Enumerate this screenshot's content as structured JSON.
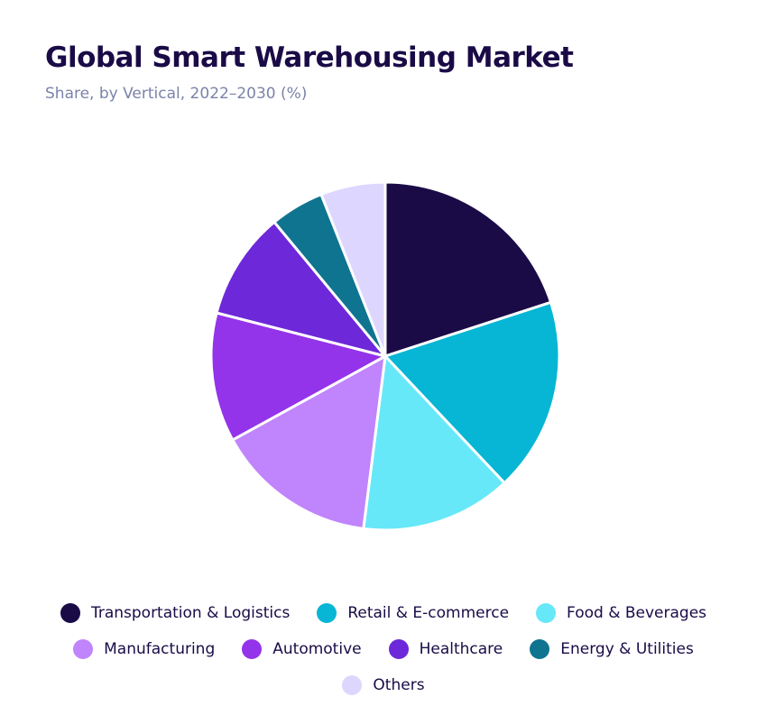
{
  "chart_data": {
    "type": "pie",
    "title": "Global Smart Warehousing Market",
    "subtitle": "Share, by Vertical, 2022–2030 (%)",
    "categories": [
      "Transportation & Logistics",
      "Retail & E-commerce",
      "Food & Beverages",
      "Manufacturing",
      "Automotive",
      "Healthcare",
      "Energy & Utilities",
      "Others"
    ],
    "values": [
      20,
      18,
      14,
      15,
      12,
      10,
      5,
      6
    ],
    "colors": [
      "#1a0b47",
      "#06b6d4",
      "#67e8f9",
      "#c084fc",
      "#9333ea",
      "#6d28d9",
      "#0e7490",
      "#ddd6fe"
    ]
  }
}
